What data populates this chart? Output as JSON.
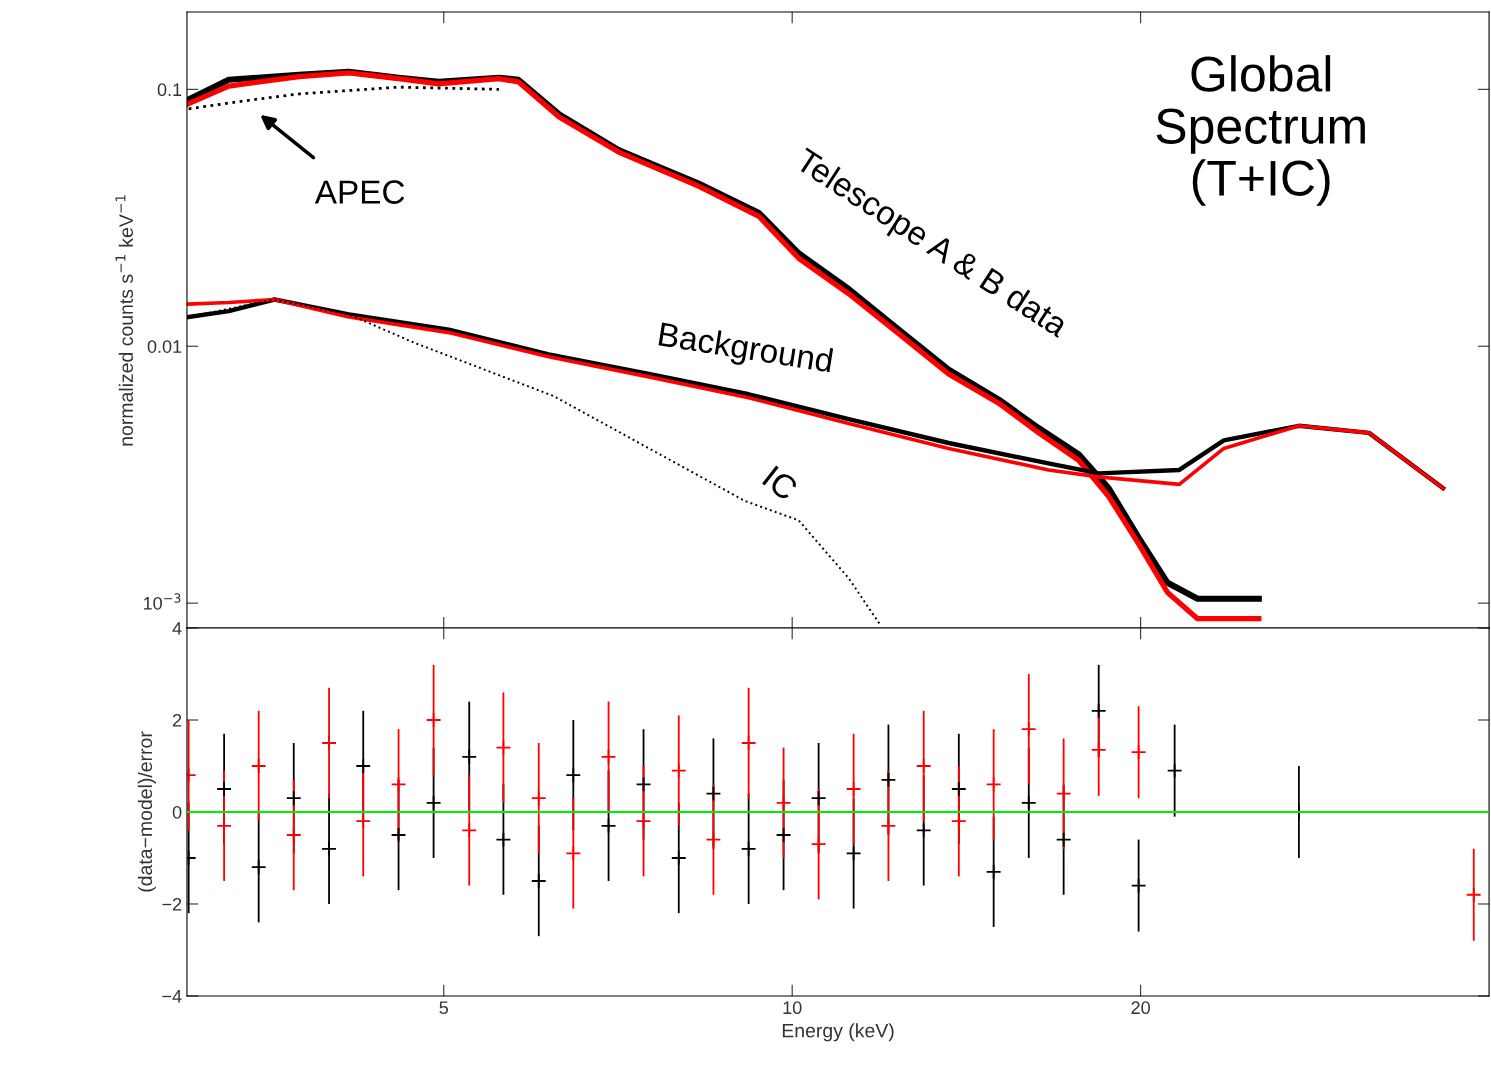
{
  "chart_data": [
    {
      "type": "line",
      "title": "Global\nSpectrum\n(T+IC)",
      "ylabel": "normalized counts s$^{−1}$ keV$^{−1}$",
      "log": "xy",
      "xlim": [
        3,
        40
      ],
      "ylim": [
        0.0008,
        0.2
      ],
      "xticks": [
        {
          "value": 5,
          "label": null
        },
        {
          "value": 10,
          "label": null
        },
        {
          "value": 20,
          "label": null
        }
      ],
      "yticks": [
        0.1,
        0.01,
        {
          "value": 0.001,
          "label": "10$^{−3}$"
        }
      ],
      "tick_labels": "y",
      "grid": false,
      "legend": false,
      "annotations": [
        "APEC",
        "Telescope A & B data",
        "Background",
        "IC"
      ],
      "series": [
        {
          "color": "#000000",
          "line_style": "solid",
          "x": [
            3.01,
            3.26,
            3.75,
            4.14,
            4.57,
            4.95,
            5.58,
            5.8,
            6.29,
            7.08,
            8.3,
            9.36,
            10.13,
            11.19,
            12.36,
            13.65,
            15.08,
            16.33,
            17.68,
            18.77,
            19.92,
            21.1,
            22.4,
            25.3
          ],
          "values": [
            0.0914,
            0.109,
            0.114,
            0.117,
            0.111,
            0.107,
            0.111,
            0.109,
            0.08,
            0.058,
            0.043,
            0.033,
            0.023,
            0.0167,
            0.0116,
            0.0081,
            0.0062,
            0.0048,
            0.0038,
            0.0028,
            0.0018,
            0.0012,
            0.00104,
            0.00104
          ]
        },
        {
          "color": "#ff0000",
          "line_style": "solid",
          "x": [
            3.01,
            3.26,
            3.75,
            4.14,
            4.57,
            4.95,
            5.58,
            5.8,
            6.29,
            7.08,
            8.3,
            9.36,
            10.13,
            11.19,
            12.36,
            13.65,
            15.08,
            16.33,
            17.68,
            18.77,
            19.92,
            21.1,
            22.4,
            25.3
          ],
          "values": [
            0.088,
            0.103,
            0.112,
            0.116,
            0.11,
            0.105,
            0.11,
            0.107,
            0.078,
            0.057,
            0.042,
            0.032,
            0.022,
            0.016,
            0.0112,
            0.0078,
            0.006,
            0.0046,
            0.0036,
            0.0026,
            0.0017,
            0.0011,
            0.00087,
            0.00087
          ]
        },
        {
          "color": "#000000",
          "line_style": "solid",
          "x": [
            3.01,
            3.26,
            3.57,
            4.14,
            5.05,
            6.16,
            7.52,
            9.17,
            11.19,
            13.65,
            16.65,
            18.4,
            21.6,
            23.6,
            27.4,
            31.5,
            36.5
          ],
          "values": [
            0.013,
            0.0137,
            0.0152,
            0.0133,
            0.0116,
            0.0093,
            0.0078,
            0.0065,
            0.0052,
            0.0042,
            0.0035,
            0.0032,
            0.0033,
            0.0043,
            0.0049,
            0.0046,
            0.0028
          ]
        },
        {
          "color": "#ff0000",
          "line_style": "solid",
          "x": [
            3.01,
            3.26,
            3.57,
            4.14,
            5.05,
            6.16,
            7.52,
            9.17,
            11.19,
            13.65,
            16.65,
            18.4,
            21.6,
            23.6,
            27.4,
            31.5,
            36.5
          ],
          "values": [
            0.0146,
            0.0148,
            0.0152,
            0.013,
            0.0113,
            0.0091,
            0.0076,
            0.0063,
            0.005,
            0.004,
            0.0033,
            0.0031,
            0.0029,
            0.004,
            0.0049,
            0.0046,
            0.0028
          ]
        },
        {
          "color": "#000000",
          "line_style": "dotted",
          "x": [
            3.01,
            3.41,
            3.75,
            4.57,
            5.58
          ],
          "values": [
            0.084,
            0.091,
            0.096,
            0.102,
            0.1
          ]
        },
        {
          "color": "#000000",
          "line_style": "dotted",
          "x": [
            3.01,
            3.57,
            4.14,
            4.72,
            6.22,
            9.1,
            10.13,
            11.19,
            11.9
          ],
          "values": [
            0.013,
            0.0152,
            0.0133,
            0.0103,
            0.0064,
            0.0025,
            0.0021,
            0.00125,
            0.00083
          ]
        }
      ]
    },
    {
      "type": "scatter",
      "xlabel": "Energy (keV)",
      "ylabel": "(data−model)/error",
      "log": "x",
      "xlim": [
        3,
        40
      ],
      "ylim": [
        -4,
        4
      ],
      "xticks": [
        5,
        10,
        20
      ],
      "yticks": [
        {
          "value": -4,
          "label": "−4"
        },
        {
          "value": -2,
          "label": "−2"
        },
        0,
        2,
        4
      ],
      "grid": false,
      "legend": false,
      "marker": "cross",
      "ref_lines": [
        {
          "axis": "y",
          "value": 0,
          "color": "#00ee00",
          "line_style": "solid"
        }
      ],
      "series": [
        {
          "color": "#000000",
          "x": [
            3.01,
            3.23,
            3.46,
            3.71,
            3.98,
            4.26,
            4.57,
            4.9,
            5.26,
            5.63,
            6.04,
            6.47,
            6.94,
            7.44,
            7.98,
            8.55,
            9.17,
            9.83,
            10.54,
            11.3,
            12.11,
            12.99,
            13.93,
            14.93,
            16.01,
            17.16,
            18.4,
            19.92,
            21.4,
            27.4
          ],
          "values": [
            -1.0,
            0.5,
            -1.2,
            0.3,
            -0.8,
            1.0,
            -0.5,
            0.2,
            1.2,
            -0.6,
            -1.5,
            0.8,
            -0.3,
            0.6,
            -1.0,
            0.4,
            -0.8,
            -0.5,
            0.3,
            -0.9,
            0.7,
            -0.4,
            0.5,
            -1.3,
            0.2,
            -0.6,
            2.2,
            -1.6,
            0.9,
            0.0
          ],
          "errors": [
            1.2,
            1.2,
            1.2,
            1.2,
            1.2,
            1.2,
            1.2,
            1.2,
            1.2,
            1.2,
            1.2,
            1.2,
            1.2,
            1.2,
            1.2,
            1.2,
            1.2,
            1.2,
            1.2,
            1.2,
            1.2,
            1.2,
            1.2,
            1.2,
            1.2,
            1.2,
            1.0,
            1.0,
            1.0,
            1.0
          ]
        },
        {
          "color": "#ff0000",
          "x": [
            3.01,
            3.23,
            3.46,
            3.71,
            3.98,
            4.26,
            4.57,
            4.9,
            5.26,
            5.63,
            6.04,
            6.47,
            6.94,
            7.44,
            7.98,
            8.55,
            9.17,
            9.83,
            10.54,
            11.3,
            12.11,
            12.99,
            13.93,
            14.93,
            16.01,
            17.16,
            18.4,
            19.92,
            38.8
          ],
          "values": [
            0.8,
            -0.3,
            1.0,
            -0.5,
            1.5,
            -0.2,
            0.6,
            2.0,
            -0.4,
            1.4,
            0.3,
            -0.9,
            1.2,
            -0.2,
            0.9,
            -0.6,
            1.5,
            0.2,
            -0.7,
            0.5,
            -0.3,
            1.0,
            -0.2,
            0.6,
            1.8,
            0.4,
            1.35,
            1.3,
            -1.8
          ],
          "errors": [
            1.2,
            1.2,
            1.2,
            1.2,
            1.2,
            1.2,
            1.2,
            1.2,
            1.2,
            1.2,
            1.2,
            1.2,
            1.2,
            1.2,
            1.2,
            1.2,
            1.2,
            1.2,
            1.2,
            1.2,
            1.2,
            1.2,
            1.2,
            1.2,
            1.2,
            1.2,
            1.0,
            1.0,
            1.0
          ]
        }
      ]
    }
  ]
}
